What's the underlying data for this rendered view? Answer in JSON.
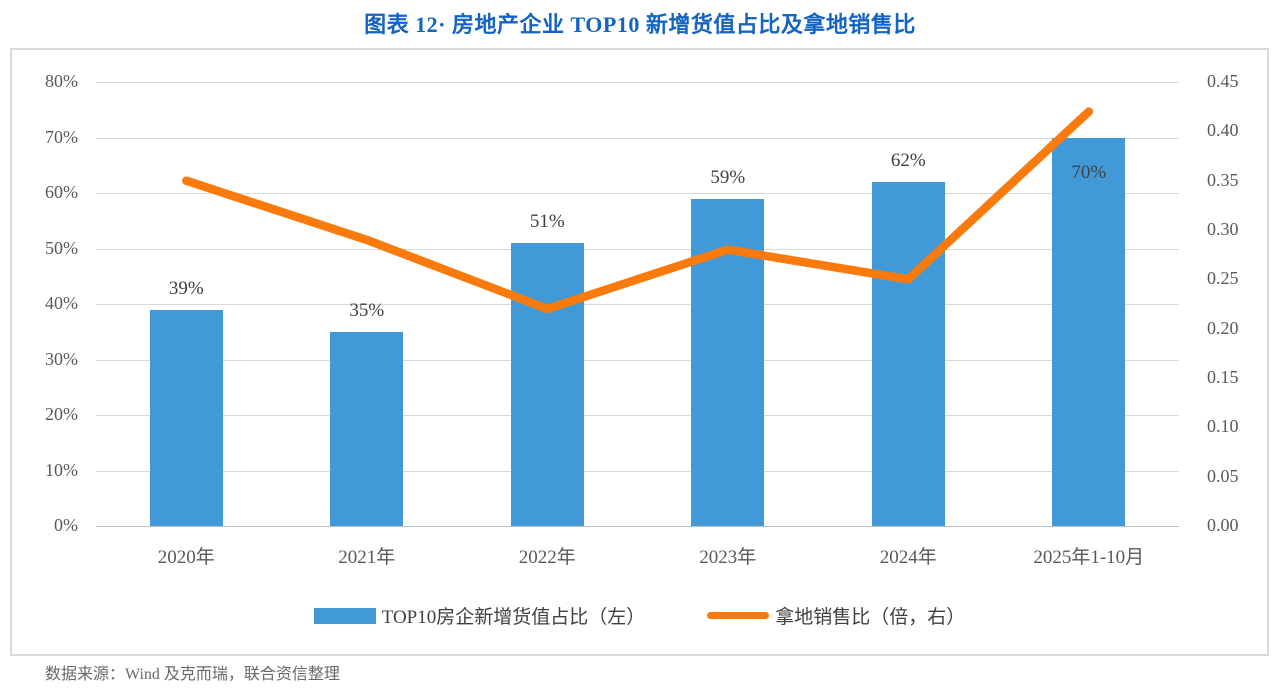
{
  "title": "图表 12· 房地产企业 TOP10 新增货值占比及拿地销售比",
  "footer": "数据来源：Wind 及克而瑞，联合资信整理",
  "colors": {
    "bar_blue": "#4299D8",
    "line_orange": "#FA7A0C",
    "title_blue": "#1464C2",
    "gridline": "#D9D9D9",
    "axis_text": "#595959",
    "label_text": "#404040"
  },
  "chart_data": {
    "type": "combo-bar-line",
    "title": "图表 12· 房地产企业 TOP10 新增货值占比及拿地销售比",
    "categories": [
      "2020年",
      "2021年",
      "2022年",
      "2023年",
      "2024年",
      "2025年1-10月"
    ],
    "series": [
      {
        "name": "TOP10房企新增货值占比（左）",
        "type": "bar",
        "axis": "left",
        "values": [
          39,
          35,
          51,
          59,
          62,
          70
        ],
        "unit": "%",
        "data_labels": [
          "39%",
          "35%",
          "51%",
          "59%",
          "62%",
          "70%"
        ],
        "label_placement": [
          "above",
          "above",
          "above",
          "above",
          "above",
          "inside"
        ]
      },
      {
        "name": "拿地销售比（倍，右）",
        "type": "line",
        "axis": "right",
        "values": [
          0.35,
          0.29,
          0.22,
          0.28,
          0.25,
          0.42
        ]
      }
    ],
    "left_axis": {
      "min": 0,
      "max": 80,
      "step": 10,
      "unit": "%",
      "ticks": [
        "80%",
        "70%",
        "60%",
        "50%",
        "40%",
        "30%",
        "20%",
        "10%",
        "0%"
      ]
    },
    "right_axis": {
      "min": 0.0,
      "max": 0.45,
      "step": 0.05,
      "ticks": [
        "0.45",
        "0.40",
        "0.35",
        "0.30",
        "0.25",
        "0.20",
        "0.15",
        "0.10",
        "0.05",
        "0.00"
      ]
    },
    "grid": true,
    "legend_position": "bottom"
  }
}
